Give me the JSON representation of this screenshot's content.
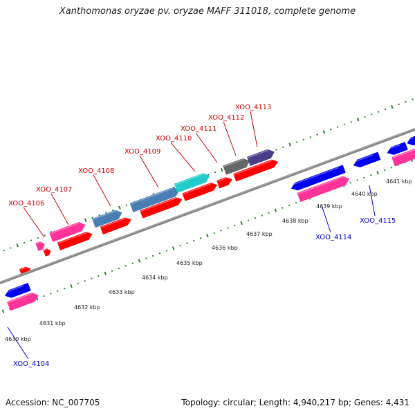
{
  "title": "Xanthomonas oryzae pv. oryzae MAFF 311018, complete genome",
  "footer": {
    "accession": "Accession: NC_007705",
    "summary": "Topology: circular; Length: 4,940,217 bp; Genes: 4,431"
  },
  "colors": {
    "backbone": "#888888",
    "tick": "#228b22",
    "red": "#ff0000",
    "pink": "#ff3399",
    "blue": "#0000ee",
    "steel": "#4a7fb5",
    "cyan": "#22cccc",
    "gray": "#666666",
    "purple": "#4b3f8c",
    "label_red": "#cc0000",
    "label_blue": "#0000cc"
  },
  "scale": {
    "unit": "kbp",
    "labels": [
      "4630 kbp",
      "4631 kbp",
      "4632 kbp",
      "4633 kbp",
      "4634 kbp",
      "4635 kbp",
      "4636 kbp",
      "4637 kbp",
      "4638 kbp",
      "4639 kbp",
      "4640 kbp",
      "4641 kbp"
    ]
  },
  "gene_labels": {
    "top": [
      "XOO_4106",
      "XOO_4107",
      "XOO_4108",
      "XOO_4109",
      "XOO_4110",
      "XOO_4111",
      "XOO_4112",
      "XOO_4113"
    ],
    "bottom": [
      "XOO_4104",
      "XOO_4114",
      "XOO_4115"
    ]
  }
}
